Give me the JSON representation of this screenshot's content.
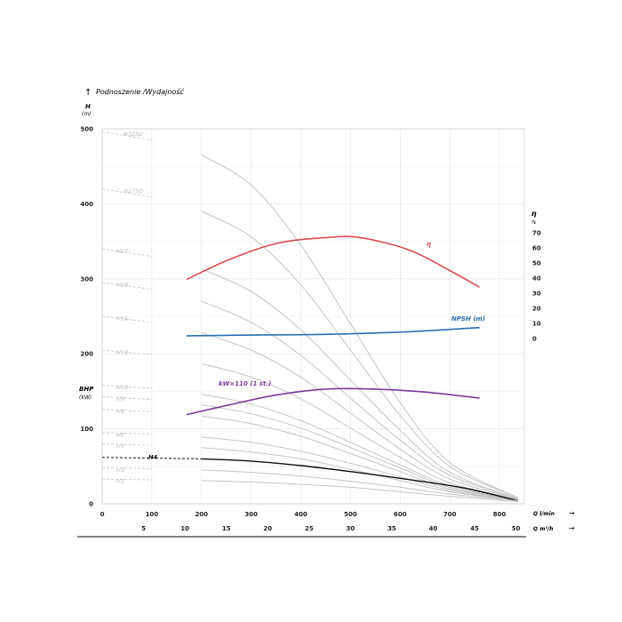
{
  "chart_data": {
    "type": "line",
    "title": "Podnoszenie /Wydajność",
    "y_left": {
      "label": "H",
      "unit": "(m)",
      "range": [
        0,
        500
      ],
      "ticks": [
        0,
        100,
        200,
        300,
        400,
        500
      ]
    },
    "y_left_secondary": {
      "label": "BHP",
      "unit": "(kW)"
    },
    "y_right": {
      "label": "η",
      "unit": "%",
      "ticks": [
        70,
        60,
        50,
        40,
        30,
        20,
        10,
        0
      ]
    },
    "x_primary": {
      "label": "Q l/min",
      "range": [
        0,
        850
      ],
      "ticks": [
        0,
        100,
        200,
        300,
        400,
        500,
        600,
        700,
        800
      ]
    },
    "x_secondary": {
      "label": "Q m³/h",
      "ticks": [
        5,
        10,
        15,
        20,
        25,
        30,
        35,
        40,
        45,
        50
      ]
    },
    "grid": true,
    "curves": [
      {
        "name": "H32SD",
        "points": [
          [
            0,
            496
          ],
          [
            100,
            485
          ],
          [
            200,
            465
          ],
          [
            300,
            425
          ],
          [
            400,
            345
          ],
          [
            500,
            240
          ],
          [
            600,
            135
          ],
          [
            700,
            55
          ],
          [
            837,
            8
          ]
        ]
      },
      {
        "name": "H27SD",
        "points": [
          [
            0,
            420
          ],
          [
            100,
            409
          ],
          [
            200,
            390
          ],
          [
            300,
            356
          ],
          [
            400,
            292
          ],
          [
            500,
            205
          ],
          [
            600,
            118
          ],
          [
            700,
            50
          ],
          [
            837,
            8
          ]
        ]
      },
      {
        "name": "H22",
        "points": [
          [
            0,
            340
          ],
          [
            100,
            330
          ],
          [
            200,
            313
          ],
          [
            300,
            283
          ],
          [
            400,
            232
          ],
          [
            500,
            165
          ],
          [
            600,
            98
          ],
          [
            700,
            42
          ],
          [
            837,
            7
          ]
        ]
      },
      {
        "name": "H19",
        "points": [
          [
            0,
            295
          ],
          [
            100,
            286
          ],
          [
            200,
            270
          ],
          [
            300,
            242
          ],
          [
            400,
            198
          ],
          [
            500,
            141
          ],
          [
            600,
            85
          ],
          [
            700,
            38
          ],
          [
            837,
            7
          ]
        ]
      },
      {
        "name": "H16",
        "points": [
          [
            0,
            250
          ],
          [
            100,
            242
          ],
          [
            200,
            228
          ],
          [
            300,
            205
          ],
          [
            400,
            169
          ],
          [
            500,
            121
          ],
          [
            600,
            73
          ],
          [
            700,
            33
          ],
          [
            837,
            6
          ]
        ]
      },
      {
        "name": "H13",
        "points": [
          [
            0,
            205
          ],
          [
            100,
            199
          ],
          [
            200,
            187
          ],
          [
            300,
            169
          ],
          [
            400,
            140
          ],
          [
            500,
            101
          ],
          [
            600,
            62
          ],
          [
            700,
            28
          ],
          [
            837,
            6
          ]
        ]
      },
      {
        "name": "H10",
        "points": [
          [
            0,
            158
          ],
          [
            100,
            154
          ],
          [
            200,
            146
          ],
          [
            300,
            133
          ],
          [
            400,
            111
          ],
          [
            500,
            82
          ],
          [
            600,
            52
          ],
          [
            700,
            24
          ],
          [
            837,
            5
          ]
        ]
      },
      {
        "name": "H9",
        "points": [
          [
            0,
            143
          ],
          [
            100,
            139
          ],
          [
            200,
            132
          ],
          [
            300,
            120
          ],
          [
            400,
            101
          ],
          [
            500,
            75
          ],
          [
            600,
            48
          ],
          [
            700,
            22
          ],
          [
            837,
            5
          ]
        ]
      },
      {
        "name": "H8",
        "points": [
          [
            0,
            126
          ],
          [
            100,
            123
          ],
          [
            200,
            117
          ],
          [
            300,
            107
          ],
          [
            400,
            90
          ],
          [
            500,
            67
          ],
          [
            600,
            43
          ],
          [
            700,
            20
          ],
          [
            837,
            5
          ]
        ]
      },
      {
        "name": "H6",
        "points": [
          [
            0,
            95
          ],
          [
            100,
            93
          ],
          [
            200,
            89
          ],
          [
            300,
            82
          ],
          [
            400,
            70
          ],
          [
            500,
            54
          ],
          [
            600,
            36
          ],
          [
            700,
            18
          ],
          [
            837,
            4
          ]
        ]
      },
      {
        "name": "H5",
        "points": [
          [
            0,
            80
          ],
          [
            100,
            78
          ],
          [
            200,
            75
          ],
          [
            300,
            69
          ],
          [
            400,
            60
          ],
          [
            500,
            46
          ],
          [
            600,
            31
          ],
          [
            700,
            16
          ],
          [
            837,
            4
          ]
        ]
      },
      {
        "name": "H4",
        "highlight": true,
        "points": [
          [
            0,
            62
          ],
          [
            200,
            60
          ],
          [
            300,
            57
          ],
          [
            400,
            51
          ],
          [
            500,
            43
          ],
          [
            600,
            34
          ],
          [
            730,
            21
          ],
          [
            837,
            4
          ]
        ]
      },
      {
        "name": "H3",
        "points": [
          [
            0,
            48
          ],
          [
            100,
            47
          ],
          [
            200,
            45
          ],
          [
            300,
            42
          ],
          [
            400,
            37
          ],
          [
            500,
            30
          ],
          [
            600,
            22
          ],
          [
            700,
            13
          ],
          [
            837,
            4
          ]
        ]
      },
      {
        "name": "H2",
        "points": [
          [
            0,
            33
          ],
          [
            100,
            32
          ],
          [
            200,
            31
          ],
          [
            300,
            29
          ],
          [
            400,
            26
          ],
          [
            500,
            22
          ],
          [
            600,
            16
          ],
          [
            700,
            10
          ],
          [
            837,
            3
          ]
        ]
      }
    ],
    "series": [
      {
        "name": "η",
        "color": "#d94d55",
        "points": [
          [
            170,
            299
          ],
          [
            250,
            324
          ],
          [
            350,
            347
          ],
          [
            450,
            355
          ],
          [
            520,
            355
          ],
          [
            620,
            338
          ],
          [
            700,
            311
          ],
          [
            760,
            289
          ]
        ]
      },
      {
        "name": "NPSH (m)",
        "color": "#2b6fb0",
        "points": [
          [
            170,
            224
          ],
          [
            300,
            225
          ],
          [
            450,
            226
          ],
          [
            600,
            229
          ],
          [
            760,
            235
          ]
        ]
      },
      {
        "name": "kW×110 (1 st.)",
        "color": "#7a3b97",
        "points": [
          [
            170,
            119
          ],
          [
            250,
            131
          ],
          [
            350,
            145
          ],
          [
            450,
            153
          ],
          [
            550,
            153
          ],
          [
            650,
            149
          ],
          [
            760,
            141
          ]
        ]
      }
    ]
  }
}
